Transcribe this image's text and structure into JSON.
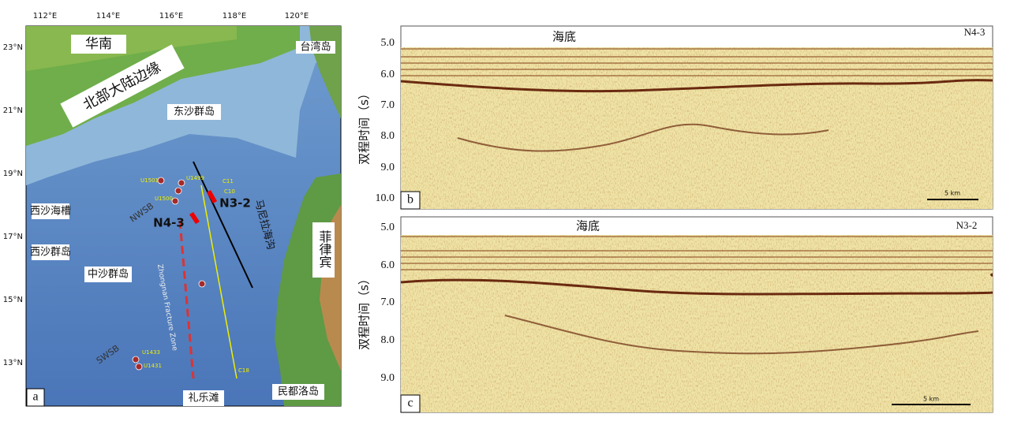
{
  "map": {
    "panel": "a",
    "lon_labels": [
      "112°E",
      "114°E",
      "116°E",
      "118°E",
      "120°E"
    ],
    "lat_labels": [
      "23°N",
      "21°N",
      "19°N",
      "17°N",
      "15°N",
      "13°N"
    ],
    "places": {
      "south_china": "华南",
      "taiwan": "台湾岛",
      "northern_margin": "北部大陆边缘",
      "dongsha": "东沙群岛",
      "xisha_trough": "西沙海槽",
      "xisha": "西沙群岛",
      "zhongsha": "中沙群岛",
      "manila_trench": "马尼拉海沟",
      "philippines": "菲律宾",
      "liyue": "礼乐滩",
      "mindoro": "民都洛岛",
      "nwsb": "NWSB",
      "swsb": "SWSB",
      "fracture_zone": "Zhongnan Fracture Zone"
    },
    "profiles": {
      "n43": "N4-3",
      "n32": "N3-2"
    },
    "sites": [
      "U1501",
      "U1499",
      "U1500",
      "U1431",
      "U1433"
    ],
    "lines": [
      "C11",
      "C10",
      "C18"
    ]
  },
  "profile_b": {
    "panel": "b",
    "name": "N4-3",
    "seafloor": "海底",
    "y_label": "双程时间（s）",
    "y_ticks": [
      "5.0",
      "6.0",
      "7.0",
      "8.0",
      "9.0",
      "10.0"
    ],
    "scale": "5 km"
  },
  "profile_c": {
    "panel": "c",
    "name": "N3-2",
    "seafloor": "海底",
    "y_label": "双程时间（s）",
    "y_ticks": [
      "5.0",
      "6.0",
      "7.0",
      "8.0",
      "9.0"
    ],
    "scale": "5 km"
  }
}
